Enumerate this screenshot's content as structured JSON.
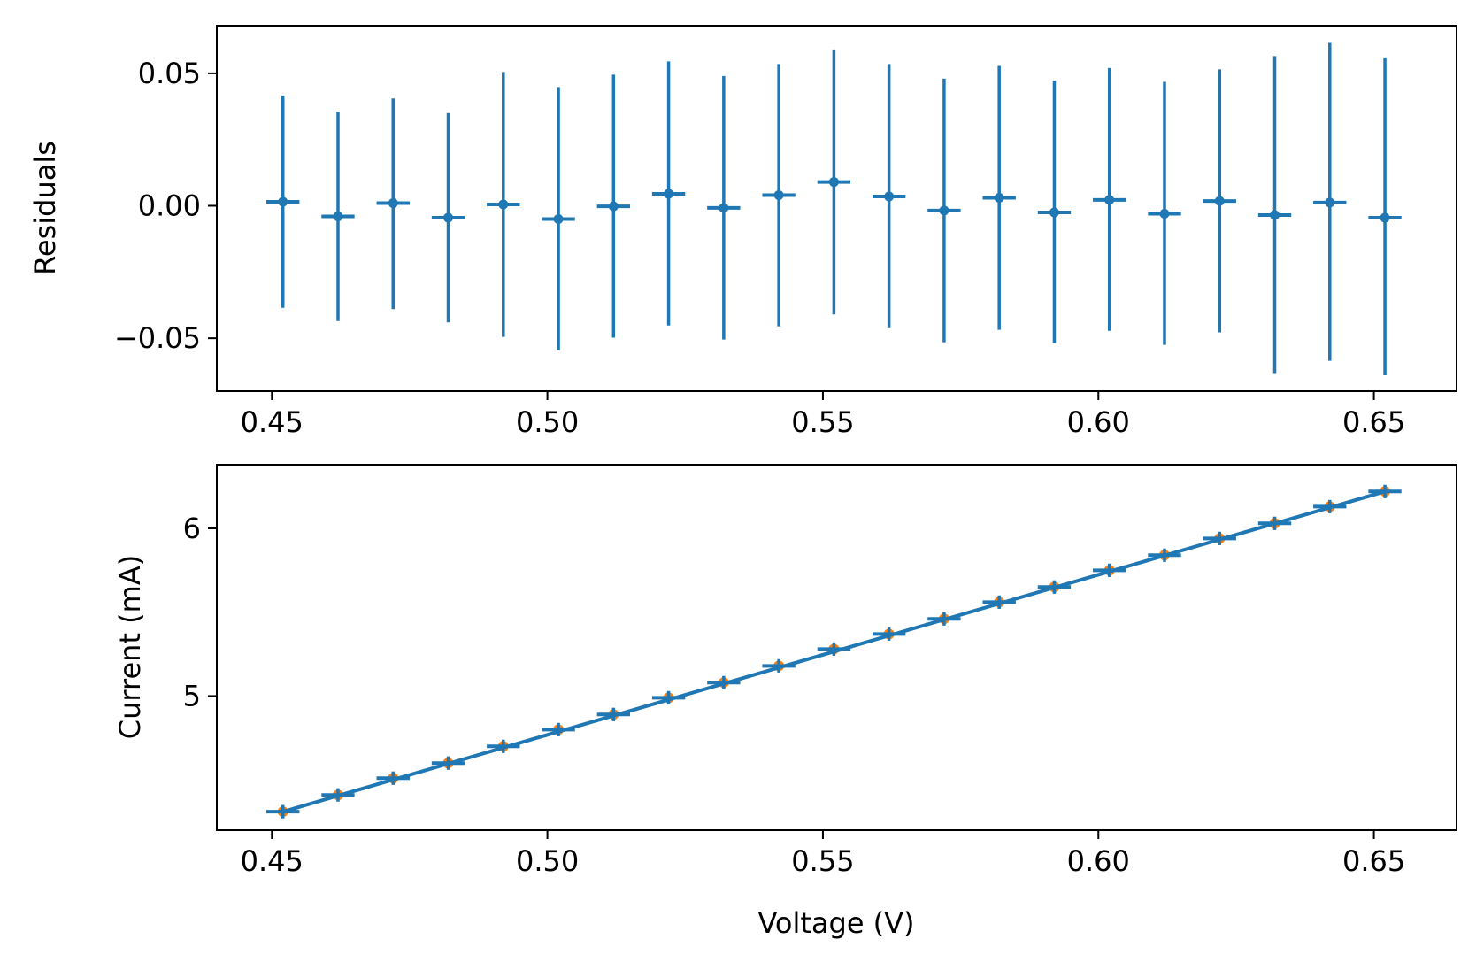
{
  "chart_data": [
    {
      "type": "scatter",
      "title": "",
      "xlabel": "",
      "ylabel": "Residuals",
      "xlim": [
        0.44,
        0.665
      ],
      "ylim": [
        -0.07,
        0.068
      ],
      "xticks": [
        0.45,
        0.5,
        0.55,
        0.6,
        0.65
      ],
      "xtick_labels": [
        "0.45",
        "0.50",
        "0.55",
        "0.60",
        "0.65"
      ],
      "yticks": [
        0.05,
        0.0,
        -0.05
      ],
      "ytick_labels": [
        "0.05",
        "0.00",
        "−0.05"
      ],
      "grid": false,
      "colors": {
        "series": "#1f77b4"
      },
      "series": [
        {
          "x": [
            0.452,
            0.462,
            0.472,
            0.482,
            0.492,
            0.502,
            0.512,
            0.522,
            0.532,
            0.542,
            0.552,
            0.562,
            0.572,
            0.582,
            0.592,
            0.602,
            0.612,
            0.622,
            0.632,
            0.642,
            0.652
          ],
          "y": [
            0.0015,
            -0.004,
            0.001,
            -0.0045,
            0.0005,
            -0.005,
            -0.0002,
            0.0045,
            -0.0008,
            0.004,
            0.009,
            0.0035,
            -0.0018,
            0.003,
            -0.0025,
            0.0022,
            -0.003,
            0.0018,
            -0.0035,
            0.0012,
            -0.0045
          ],
          "yerr_low": [
            -0.0385,
            -0.0435,
            -0.039,
            -0.044,
            -0.0495,
            -0.0545,
            -0.0498,
            -0.0452,
            -0.0505,
            -0.0455,
            -0.041,
            -0.0462,
            -0.0515,
            -0.0468,
            -0.0518,
            -0.0472,
            -0.0525,
            -0.0478,
            -0.0635,
            -0.0585,
            -0.064
          ],
          "yerr_high": [
            0.0415,
            0.0355,
            0.0405,
            0.035,
            0.0505,
            0.0448,
            0.0495,
            0.0545,
            0.049,
            0.0535,
            0.059,
            0.0535,
            0.048,
            0.0528,
            0.0472,
            0.052,
            0.0468,
            0.0515,
            0.0565,
            0.0615,
            0.056
          ],
          "xerr": 0.003
        }
      ]
    },
    {
      "type": "line",
      "title": "",
      "xlabel": "Voltage (V)",
      "ylabel": "Current (mA)",
      "xlim": [
        0.44,
        0.665
      ],
      "ylim": [
        4.2,
        6.38
      ],
      "xticks": [
        0.45,
        0.5,
        0.55,
        0.6,
        0.65
      ],
      "xtick_labels": [
        "0.45",
        "0.50",
        "0.55",
        "0.60",
        "0.65"
      ],
      "yticks": [
        5,
        6
      ],
      "ytick_labels": [
        "5",
        "6"
      ],
      "grid": false,
      "colors": {
        "data": "#ff7f0e",
        "fit": "#1f77b4"
      },
      "series": [
        {
          "kind": "data",
          "x": [
            0.452,
            0.462,
            0.472,
            0.482,
            0.492,
            0.502,
            0.512,
            0.522,
            0.532,
            0.542,
            0.552,
            0.562,
            0.572,
            0.582,
            0.592,
            0.602,
            0.612,
            0.622,
            0.632,
            0.642,
            0.652
          ],
          "y": [
            4.31,
            4.41,
            4.51,
            4.6,
            4.7,
            4.8,
            4.89,
            4.99,
            5.08,
            5.18,
            5.28,
            5.37,
            5.46,
            5.56,
            5.65,
            5.75,
            5.84,
            5.94,
            6.03,
            6.13,
            6.22
          ],
          "xerr": 0.003,
          "yerr": 0.04
        },
        {
          "kind": "fit",
          "x": [
            0.452,
            0.652
          ],
          "y": [
            4.31,
            6.22
          ]
        }
      ]
    }
  ]
}
